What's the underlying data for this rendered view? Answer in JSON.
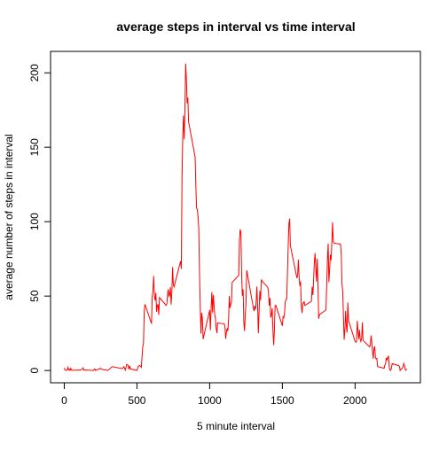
{
  "chart_data": {
    "type": "line",
    "title": "average steps in interval vs time interval",
    "x_label": "5 minute interval",
    "y_label": "average number of steps in interval",
    "series": [
      {
        "name": "average steps",
        "color": "#ff0000",
        "x": [
          0,
          5,
          10,
          15,
          20,
          25,
          30,
          35,
          40,
          45,
          50,
          55,
          100,
          110,
          125,
          130,
          135,
          150,
          200,
          210,
          215,
          250,
          255,
          300,
          330,
          400,
          410,
          420,
          430,
          440,
          445,
          450,
          455,
          500,
          510,
          520,
          530,
          540,
          545,
          550,
          555,
          600,
          605,
          610,
          615,
          620,
          625,
          630,
          635,
          640,
          645,
          650,
          655,
          700,
          705,
          710,
          715,
          720,
          725,
          730,
          735,
          740,
          745,
          750,
          755,
          800,
          805,
          810,
          815,
          820,
          825,
          830,
          835,
          840,
          845,
          850,
          855,
          900,
          905,
          910,
          915,
          920,
          925,
          930,
          935,
          940,
          945,
          950,
          955,
          1000,
          1005,
          1010,
          1015,
          1020,
          1025,
          1030,
          1035,
          1040,
          1045,
          1050,
          1055,
          1100,
          1105,
          1110,
          1115,
          1120,
          1125,
          1130,
          1135,
          1140,
          1145,
          1150,
          1155,
          1200,
          1205,
          1210,
          1215,
          1220,
          1225,
          1230,
          1235,
          1240,
          1245,
          1250,
          1255,
          1300,
          1305,
          1310,
          1315,
          1320,
          1325,
          1330,
          1335,
          1340,
          1345,
          1350,
          1355,
          1400,
          1405,
          1410,
          1415,
          1420,
          1425,
          1430,
          1435,
          1440,
          1445,
          1450,
          1455,
          1500,
          1505,
          1510,
          1515,
          1520,
          1525,
          1530,
          1535,
          1540,
          1545,
          1550,
          1555,
          1600,
          1605,
          1610,
          1615,
          1620,
          1625,
          1630,
          1635,
          1640,
          1645,
          1650,
          1655,
          1700,
          1705,
          1710,
          1715,
          1720,
          1725,
          1730,
          1735,
          1740,
          1745,
          1750,
          1755,
          1800,
          1805,
          1810,
          1815,
          1820,
          1825,
          1830,
          1835,
          1840,
          1845,
          1850,
          1855,
          1900,
          1905,
          1910,
          1915,
          1920,
          1925,
          1930,
          1935,
          1940,
          1945,
          1950,
          1955,
          2000,
          2005,
          2010,
          2015,
          2020,
          2025,
          2030,
          2035,
          2040,
          2045,
          2050,
          2055,
          2100,
          2105,
          2110,
          2115,
          2120,
          2125,
          2130,
          2135,
          2140,
          2145,
          2150,
          2155,
          2200,
          2205,
          2210,
          2215,
          2220,
          2225,
          2230,
          2235,
          2240,
          2245,
          2250,
          2255,
          2300,
          2305,
          2310,
          2315,
          2320,
          2325,
          2330,
          2335,
          2340,
          2345,
          2350,
          2355
        ],
        "values": [
          1.7,
          0.3,
          0.1,
          0.2,
          0.1,
          2.1,
          0.5,
          0.9,
          0,
          1.5,
          0.3,
          0.1,
          0.3,
          0.2,
          1.1,
          1.8,
          0.2,
          0.3,
          0,
          1.1,
          0,
          1.5,
          0.9,
          0,
          2.6,
          1.2,
          2.6,
          0.3,
          4.1,
          3.5,
          0.8,
          3.1,
          1.1,
          0,
          3,
          3.3,
          2.1,
          16,
          18.3,
          39.5,
          44.5,
          31.5,
          49.3,
          53.8,
          63.5,
          50,
          47.1,
          52.2,
          39.3,
          44,
          44.2,
          37.4,
          49,
          43.8,
          44.4,
          50.5,
          54.5,
          49.9,
          50.9,
          56,
          44.3,
          52.3,
          69.5,
          57.8,
          56.2,
          73.4,
          68.2,
          129.4,
          157.5,
          171.2,
          155.4,
          177.3,
          206.2,
          195.9,
          179.6,
          183.4,
          167,
          143.5,
          124,
          109.1,
          108.1,
          103.7,
          96,
          66.2,
          45.2,
          24.8,
          38.8,
          35,
          21.1,
          40.6,
          27,
          42.4,
          52.7,
          38.9,
          50.8,
          44.3,
          37.4,
          34.7,
          28.3,
          25.1,
          31.9,
          31.4,
          29.7,
          21.3,
          25.5,
          28.4,
          26.5,
          33.4,
          50,
          42,
          44.6,
          46,
          59.2,
          63.9,
          87.7,
          94.8,
          92.8,
          63.4,
          50.2,
          54.5,
          32.4,
          26.5,
          37.7,
          45.1,
          67.3,
          42.3,
          39.9,
          43.3,
          41,
          46.2,
          56.4,
          42.8,
          25.1,
          40,
          53.5,
          47.3,
          60.8,
          55.8,
          52,
          43.6,
          48.7,
          35.5,
          37.5,
          41.8,
          27.5,
          17.1,
          26.1,
          43.6,
          43.8,
          30,
          36.1,
          35.5,
          38.8,
          46,
          47.8,
          48.1,
          65.3,
          82.9,
          98.7,
          102.1,
          84,
          62.1,
          64.1,
          74.5,
          63.2,
          56.9,
          59.8,
          43.9,
          38.6,
          44.7,
          45.5,
          46.2,
          43.7,
          46.6,
          56.3,
          50.7,
          61.2,
          72.7,
          78.9,
          68.9,
          59.7,
          75.1,
          56.5,
          34.8,
          37.5,
          40.7,
          58,
          74.7,
          85.3,
          59.3,
          67.8,
          77.7,
          74.2,
          85.3,
          99.5,
          86.6,
          85.6,
          84.9,
          77.8,
          58,
          53.4,
          36.3,
          20.7,
          27.4,
          40,
          30.2,
          25.5,
          45.7,
          33.5,
          19.6,
          19,
          19.3,
          33.3,
          26.8,
          21.2,
          27.3,
          21.3,
          19.5,
          21.3,
          32.3,
          20.2,
          15.9,
          17.2,
          23.5,
          19.2,
          12.5,
          8,
          14.7,
          16.3,
          8.7,
          7.8,
          8.1,
          2.6,
          1.5,
          3.7,
          4.8,
          8.5,
          7.1,
          8.7,
          9.8,
          2.2,
          0.3,
          0.1,
          1.6,
          4.6,
          3.3,
          2.8,
          0,
          0.8,
          1,
          1.6,
          2.6,
          4.7,
          3.3,
          0.6,
          0.2,
          1.1
        ]
      }
    ],
    "xlim": [
      -94.2,
      2449.2
    ],
    "xticks": [
      0,
      500,
      1000,
      1500,
      2000
    ],
    "ylim": [
      -8.25,
      214.4
    ],
    "yticks": [
      0,
      50,
      100,
      150,
      200
    ],
    "grid": false
  }
}
